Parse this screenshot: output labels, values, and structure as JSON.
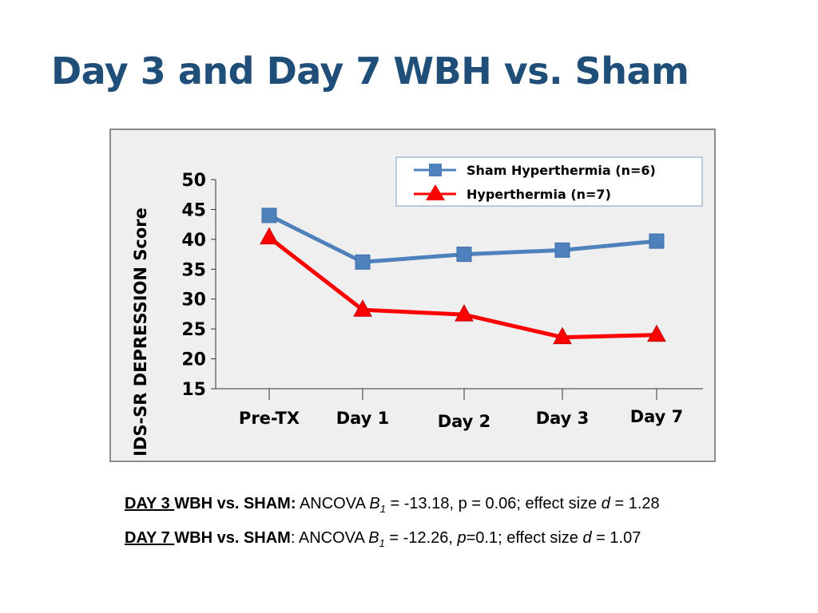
{
  "slide": {
    "title": "Day 3 and Day 7 WBH vs. Sham"
  },
  "chart_data": {
    "type": "line",
    "categories": [
      "Pre-TX",
      "Day 1",
      "Day 2",
      "Day 3",
      "Day 7"
    ],
    "series": [
      {
        "name": "Sham Hyperthermia (n=6)",
        "values": [
          44.0,
          36.2,
          37.5,
          38.2,
          39.7
        ],
        "color": "#4f81bd",
        "marker": "square"
      },
      {
        "name": "Hyperthermia (n=7)",
        "values": [
          40.3,
          28.2,
          27.4,
          23.6,
          24.0
        ],
        "color": "#ff0000",
        "marker": "triangle"
      }
    ],
    "title": "",
    "xlabel": "",
    "ylabel": "IDS-SR DEPRESSION  Score",
    "ylim": [
      15,
      50
    ],
    "yticks": [
      "50",
      "45",
      "40",
      "35",
      "30",
      "25",
      "20",
      "15"
    ],
    "grid": false,
    "legend_position": "top-right"
  },
  "notes": {
    "day3": {
      "label": "DAY 3 ",
      "heading": "WBH vs. SHAM:",
      "t1": " ANCOVA ",
      "b": "B",
      "sub": "1",
      "t2": " = -13.18, p = 0.06; effect size ",
      "d": "d",
      "t3": " = 1.28"
    },
    "day7": {
      "label": "DAY 7 ",
      "heading": "WBH vs. SHAM",
      "t1": ": ANCOVA ",
      "b": "B",
      "sub": "1",
      "t2": " = -12.26, ",
      "p": "p",
      "t3": "=0.1; effect size ",
      "d": "d",
      "t4": " = 1.07"
    }
  }
}
